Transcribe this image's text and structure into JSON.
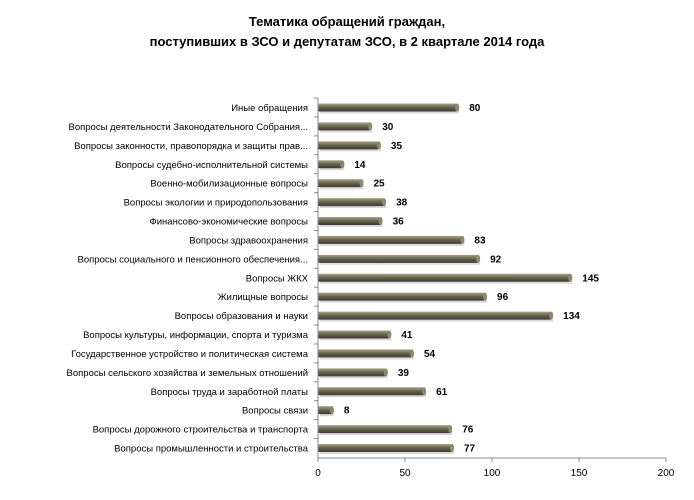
{
  "chart_data": {
    "type": "bar",
    "orientation": "horizontal",
    "title_lines": [
      "Тематика обращений граждан,",
      "поступивших в ЗСО и депутатам ЗСО, в 2 квартале 2014 года"
    ],
    "xlabel": "",
    "ylabel": "",
    "xlim": [
      0,
      200
    ],
    "xticks": [
      0,
      50,
      100,
      150,
      200
    ],
    "grid": false,
    "legend": "none",
    "bar_color": "#6b6650",
    "categories": [
      "Иные обращения",
      "Вопросы деятельности Законодательного Собрания...",
      "Вопросы законности, правопорядка и защиты прав...",
      "Вопросы судебно-исполнительной системы",
      "Военно-мобилизационные вопросы",
      "Вопросы экологии и природопользования",
      "Финансово-экономические вопросы",
      "Вопросы здравоохранения",
      "Вопросы социального и пенсионного обеспечения...",
      "Вопросы ЖКХ",
      "Жилищные вопросы",
      "Вопросы образования и науки",
      "Вопросы культуры, информации, спорта и туризма",
      "Государственное устройство и политическая система",
      "Вопросы сельского хозяйства и земельных отношений",
      "Вопросы труда и заработной платы",
      "Вопросы связи",
      "Вопросы дорожного строительства и транспорта",
      "Вопросы промышленности и строительства"
    ],
    "values": [
      80,
      30,
      35,
      14,
      25,
      38,
      36,
      83,
      92,
      145,
      96,
      134,
      41,
      54,
      39,
      61,
      8,
      76,
      77
    ]
  }
}
